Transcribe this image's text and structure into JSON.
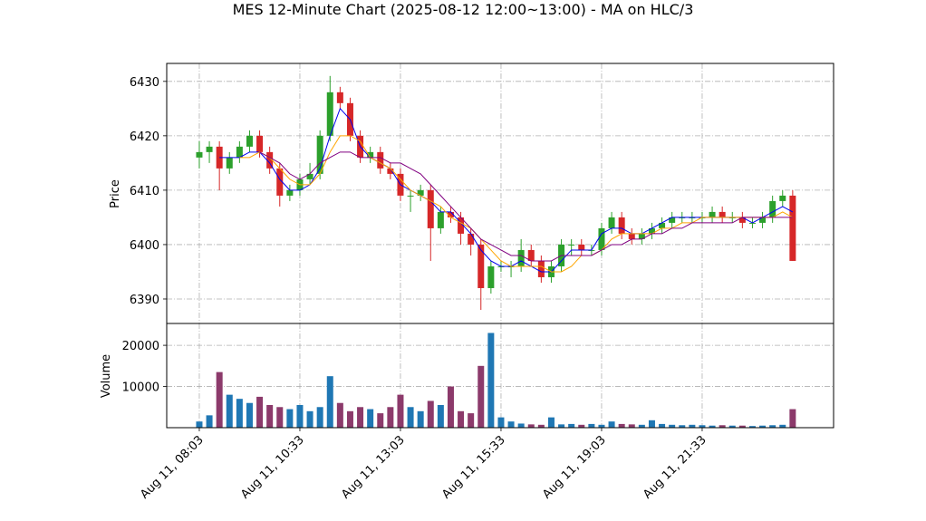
{
  "chart_data": {
    "type": "candlestick",
    "title": "MES 12-Minute Chart (2025-08-12 12:00~13:00) - MA on HLC/3",
    "ylabel": "Price",
    "volume_ylabel": "Volume",
    "x": [
      0,
      15,
      30,
      45,
      60,
      75,
      90,
      105,
      120,
      135,
      150,
      165,
      180,
      195,
      210,
      225,
      240,
      255,
      270,
      285,
      300,
      315,
      330,
      345,
      360,
      375,
      390,
      405,
      420,
      435,
      450,
      465,
      480,
      495,
      510,
      525,
      540,
      555,
      570,
      585,
      600,
      615,
      630,
      645,
      660,
      675,
      690,
      705,
      720,
      735,
      750,
      765,
      780,
      795,
      810,
      825,
      840,
      855,
      870,
      885
    ],
    "open": [
      6416,
      6417,
      6418,
      6414,
      6416,
      6418,
      6420,
      6417,
      6414,
      6409,
      6410,
      6412,
      6413,
      6420,
      6428,
      6426,
      6420,
      6416,
      6417,
      6414,
      6413,
      6409,
      6409,
      6410,
      6403,
      6406,
      6405,
      6402,
      6400,
      6392,
      6396,
      6396,
      6396,
      6399,
      6397,
      6394,
      6396,
      6400,
      6400,
      6399,
      6399,
      6403,
      6405,
      6402,
      6401,
      6402,
      6403,
      6404,
      6405,
      6405,
      6405,
      6405,
      6406,
      6405,
      6405,
      6404,
      6404,
      6405,
      6408,
      6409
    ],
    "high": [
      6419,
      6419,
      6419,
      6417,
      6419,
      6421,
      6421,
      6418,
      6415,
      6411,
      6413,
      6415,
      6421,
      6431,
      6429,
      6427,
      6421,
      6418,
      6418,
      6415,
      6414,
      6410,
      6411,
      6411,
      6407,
      6407,
      6406,
      6403,
      6401,
      6397,
      6397,
      6397,
      6401,
      6400,
      6398,
      6397,
      6401,
      6401,
      6401,
      6400,
      6404,
      6406,
      6406,
      6403,
      6403,
      6404,
      6405,
      6406,
      6406,
      6406,
      6406,
      6407,
      6407,
      6406,
      6406,
      6405,
      6406,
      6409,
      6410,
      6410
    ],
    "low": [
      6414,
      6415,
      6410,
      6413,
      6415,
      6417,
      6416,
      6413,
      6407,
      6408,
      6409,
      6411,
      6412,
      6419,
      6425,
      6419,
      6415,
      6415,
      6413,
      6412,
      6408,
      6406,
      6408,
      6397,
      6402,
      6404,
      6400,
      6398,
      6388,
      6391,
      6395,
      6394,
      6395,
      6396,
      6393,
      6393,
      6395,
      6398,
      6398,
      6398,
      6398,
      6402,
      6401,
      6400,
      6400,
      6401,
      6402,
      6403,
      6404,
      6404,
      6404,
      6404,
      6404,
      6404,
      6403,
      6403,
      6403,
      6404,
      6407,
      6397
    ],
    "close": [
      6417,
      6418,
      6414,
      6416,
      6418,
      6420,
      6417,
      6414,
      6409,
      6410,
      6412,
      6413,
      6420,
      6428,
      6426,
      6420,
      6416,
      6417,
      6414,
      6413,
      6409,
      6409,
      6410,
      6403,
      6406,
      6405,
      6402,
      6400,
      6392,
      6396,
      6396,
      6396,
      6399,
      6397,
      6394,
      6396,
      6400,
      6400,
      6399,
      6399,
      6403,
      6405,
      6402,
      6401,
      6402,
      6403,
      6404,
      6405,
      6405,
      6405,
      6405,
      6406,
      6405,
      6405,
      6404,
      6404,
      6405,
      6408,
      6409,
      6397
    ],
    "volume": [
      1500,
      3000,
      13500,
      8000,
      7000,
      6000,
      7500,
      5500,
      5000,
      4500,
      5500,
      4000,
      5000,
      12500,
      6000,
      4000,
      5000,
      4500,
      3500,
      5000,
      8000,
      5000,
      4000,
      6500,
      5500,
      10000,
      4000,
      3500,
      15000,
      23000,
      2500,
      1500,
      1000,
      800,
      700,
      2500,
      800,
      900,
      700,
      900,
      700,
      1500,
      900,
      800,
      700,
      1800,
      900,
      700,
      600,
      700,
      600,
      500,
      600,
      500,
      500,
      400,
      500,
      600,
      700,
      4500
    ],
    "up_color": "#2ca02c",
    "down_color": "#d62728",
    "volume_up_color": "#1f77b4",
    "volume_down_color": "#8c3a6b",
    "ma_lines": [
      {
        "color": "#0000ee",
        "values": [
          null,
          null,
          6416,
          6416,
          6416,
          6417,
          6417,
          6415,
          6412,
          6410,
          6410,
          6411,
          6414,
          6420,
          6425,
          6423,
          6418,
          6416,
          6415,
          6414,
          6411,
          6410,
          6409,
          6408,
          6406,
          6406,
          6404,
          6402,
          6399,
          6397,
          6396,
          6396,
          6397,
          6396,
          6395,
          6395,
          6397,
          6399,
          6399,
          6399,
          6402,
          6403,
          6403,
          6402,
          6402,
          6403,
          6404,
          6405,
          6405,
          6405,
          6405,
          6405,
          6405,
          6405,
          6405,
          6404,
          6405,
          6406,
          6407,
          6406
        ]
      },
      {
        "color": "#ffa500",
        "values": [
          null,
          null,
          null,
          null,
          6416,
          6416,
          6417,
          6416,
          6414,
          6412,
          6411,
          6411,
          6413,
          6417,
          6420,
          6420,
          6419,
          6416,
          6415,
          6414,
          6412,
          6410,
          6409,
          6408,
          6407,
          6405,
          6404,
          6403,
          6401,
          6399,
          6397,
          6396,
          6396,
          6396,
          6396,
          6395,
          6395,
          6396,
          6398,
          6398,
          6399,
          6401,
          6402,
          6402,
          6402,
          6402,
          6403,
          6403,
          6404,
          6404,
          6405,
          6405,
          6405,
          6405,
          6405,
          6405,
          6405,
          6405,
          6406,
          6405
        ]
      },
      {
        "color": "#800080",
        "values": [
          null,
          null,
          null,
          null,
          null,
          null,
          6417,
          6416,
          6415,
          6413,
          6412,
          6413,
          6415,
          6416,
          6417,
          6417,
          6416,
          6416,
          6416,
          6415,
          6415,
          6414,
          6413,
          6411,
          6409,
          6407,
          6405,
          6403,
          6401,
          6400,
          6399,
          6398,
          6398,
          6397,
          6397,
          6397,
          6398,
          6398,
          6398,
          6398,
          6399,
          6400,
          6400,
          6401,
          6401,
          6402,
          6402,
          6403,
          6403,
          6404,
          6404,
          6404,
          6404,
          6404,
          6405,
          6405,
          6405,
          6405,
          6405,
          6405
        ]
      }
    ],
    "xlim": [
      -48.6,
      946
    ],
    "xticks": [
      {
        "value": 0,
        "label": "Aug 11, 08:03"
      },
      {
        "value": 150,
        "label": "Aug 11, 10:33"
      },
      {
        "value": 300,
        "label": "Aug 11, 13:03"
      },
      {
        "value": 450,
        "label": "Aug 11, 15:33"
      },
      {
        "value": 600,
        "label": "Aug 11, 19:03"
      },
      {
        "value": 750,
        "label": "Aug 11, 21:33"
      }
    ],
    "ylim": [
      6385.5,
      6433.3
    ],
    "yticks": [
      6390,
      6400,
      6410,
      6420,
      6430
    ],
    "volume_ylim": [
      0,
      25300
    ],
    "volume_yticks": [
      10000,
      20000
    ],
    "grid": true
  }
}
